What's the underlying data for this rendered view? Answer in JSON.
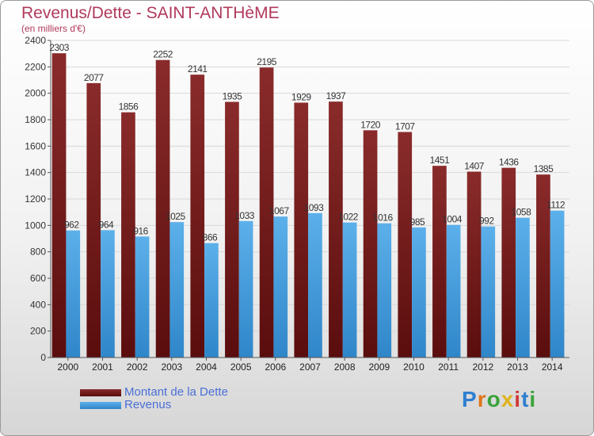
{
  "title": "Revenus/Dette - SAINT-ANTHèME",
  "subtitle": "(en milliers d'€)",
  "colors": {
    "dette_top": "#8a2b2b",
    "dette_bottom": "#5a0d0d",
    "revenus_top": "#5cb0ea",
    "revenus_bottom": "#2f86c9",
    "grid": "#d9d9d9",
    "axis": "#555555"
  },
  "legend": {
    "dette": "Montant de la Dette",
    "revenus": "Revenus"
  },
  "logo": "Proxiti",
  "chart_data": {
    "type": "bar",
    "categories": [
      "2000",
      "2001",
      "2002",
      "2003",
      "2004",
      "2005",
      "2006",
      "2007",
      "2008",
      "2009",
      "2010",
      "2011",
      "2012",
      "2013",
      "2014"
    ],
    "series": [
      {
        "name": "Montant de la Dette",
        "values": [
          2303,
          2077,
          1856,
          2252,
          2141,
          1935,
          2195,
          1929,
          1937,
          1720,
          1707,
          1451,
          1407,
          1436,
          1385
        ]
      },
      {
        "name": "Revenus",
        "values": [
          962,
          964,
          916,
          1025,
          866,
          1033,
          1067,
          1093,
          1022,
          1016,
          985,
          1004,
          992,
          1058,
          1112
        ]
      }
    ],
    "ylim": [
      0,
      2400
    ],
    "yticks": [
      0,
      200,
      400,
      600,
      800,
      1000,
      1200,
      1400,
      1600,
      1800,
      2000,
      2200,
      2400
    ],
    "grid": true,
    "legend_position": "bottom-left"
  }
}
